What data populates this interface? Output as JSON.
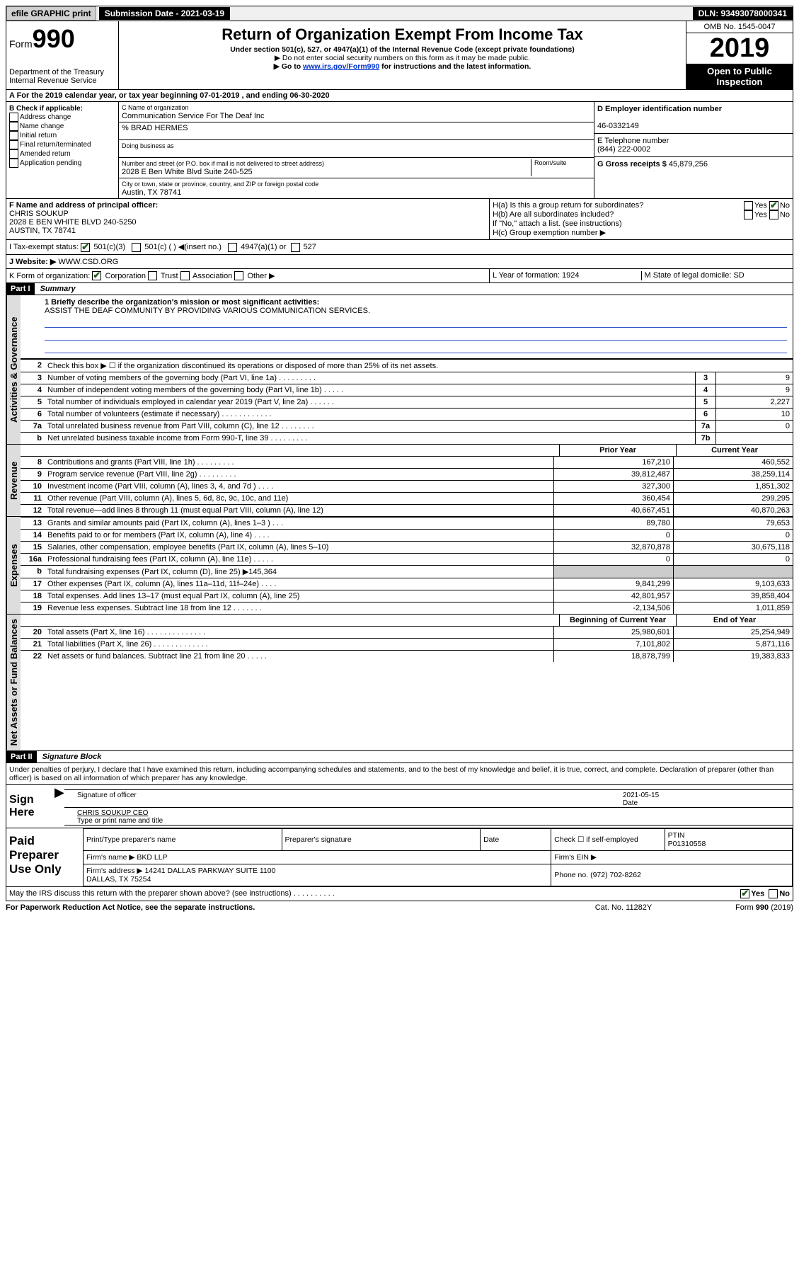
{
  "top": {
    "efile": "efile GRAPHIC print",
    "sub_date": "Submission Date - 2021-03-19",
    "dln": "DLN: 93493078000341"
  },
  "header": {
    "form": "Form",
    "form_no": "990",
    "dept": "Department of the Treasury\nInternal Revenue Service",
    "title": "Return of Organization Exempt From Income Tax",
    "subtitle": "Under section 501(c), 527, or 4947(a)(1) of the Internal Revenue Code (except private foundations)",
    "note1": "▶ Do not enter social security numbers on this form as it may be made public.",
    "note2_pre": "▶ Go to ",
    "note2_link": "www.irs.gov/Form990",
    "note2_post": " for instructions and the latest information.",
    "omb": "OMB No. 1545-0047",
    "year": "2019",
    "inspection": "Open to Public Inspection"
  },
  "row_a": "A For the 2019 calendar year, or tax year beginning 07-01-2019   , and ending 06-30-2020",
  "col_b": {
    "title": "B Check if applicable:",
    "opts": [
      "Address change",
      "Name change",
      "Initial return",
      "Final return/terminated",
      "Amended return",
      "Application pending"
    ]
  },
  "col_c": {
    "c_label": "C Name of organization",
    "c_name": "Communication Service For The Deaf Inc",
    "care": "% BRAD HERMES",
    "dba_label": "Doing business as",
    "addr_label": "Number and street (or P.O. box if mail is not delivered to street address)",
    "room": "Room/suite",
    "addr": "2028 E Ben White Blvd Suite 240-525",
    "city_label": "City or town, state or province, country, and ZIP or foreign postal code",
    "city": "Austin, TX  78741"
  },
  "col_de": {
    "d_label": "D Employer identification number",
    "d_val": "46-0332149",
    "e_label": "E Telephone number",
    "e_val": "(844) 222-0002",
    "g_label": "G Gross receipts $",
    "g_val": "45,879,256"
  },
  "row_f": {
    "f_label": "F  Name and address of principal officer:",
    "f_name": "CHRIS SOUKUP",
    "f_addr1": "2028 E BEN WHITE BLVD 240-5250",
    "f_addr2": "AUSTIN, TX  78741"
  },
  "row_h": {
    "ha": "H(a)  Is this a group return for subordinates?",
    "hb": "H(b)  Are all subordinates included?",
    "hb_note": "If \"No,\" attach a list. (see instructions)",
    "hc": "H(c)  Group exemption number ▶"
  },
  "row_i": {
    "label": "I   Tax-exempt status:",
    "o1": "501(c)(3)",
    "o2": "501(c) (  ) ◀(insert no.)",
    "o3": "4947(a)(1) or",
    "o4": "527"
  },
  "row_j": {
    "label": "J   Website: ▶",
    "val": "WWW.CSD.ORG"
  },
  "row_k": {
    "label": "K Form of organization:",
    "o1": "Corporation",
    "o2": "Trust",
    "o3": "Association",
    "o4": "Other ▶"
  },
  "row_lm": {
    "l": "L Year of formation: 1924",
    "m": "M State of legal domicile: SD"
  },
  "part1": {
    "header": "Part I",
    "title": "Summary",
    "q1": "1  Briefly describe the organization's mission or most significant activities:",
    "mission": "ASSIST THE DEAF COMMUNITY BY PROVIDING VARIOUS COMMUNICATION SERVICES.",
    "q2": "Check this box ▶ ☐  if the organization discontinued its operations or disposed of more than 25% of its net assets."
  },
  "vtabs": {
    "gov": "Activities & Governance",
    "rev": "Revenue",
    "exp": "Expenses",
    "net": "Net Assets or Fund Balances"
  },
  "gov_rows": [
    {
      "n": "3",
      "d": "Number of voting members of the governing body (Part VI, line 1a)  .   .   .   .   .   .   .   .   .",
      "b": "3",
      "v": "9"
    },
    {
      "n": "4",
      "d": "Number of independent voting members of the governing body (Part VI, line 1b)  .   .   .   .   .",
      "b": "4",
      "v": "9"
    },
    {
      "n": "5",
      "d": "Total number of individuals employed in calendar year 2019 (Part V, line 2a)  .   .   .   .   .   .",
      "b": "5",
      "v": "2,227"
    },
    {
      "n": "6",
      "d": "Total number of volunteers (estimate if necessary)  .   .   .   .   .   .   .   .   .   .   .   .",
      "b": "6",
      "v": "10"
    },
    {
      "n": "7a",
      "d": "Total unrelated business revenue from Part VIII, column (C), line 12  .   .   .   .   .   .   .   .",
      "b": "7a",
      "v": "0"
    },
    {
      "n": "b",
      "d": "Net unrelated business taxable income from Form 990-T, line 39  .   .   .   .   .   .   .   .   .",
      "b": "7b",
      "v": ""
    }
  ],
  "year_cols": {
    "py": "Prior Year",
    "cy": "Current Year"
  },
  "rev_rows": [
    {
      "n": "8",
      "d": "Contributions and grants (Part VIII, line 1h)  .   .   .   .   .   .   .   .   .",
      "py": "167,210",
      "cy": "460,552"
    },
    {
      "n": "9",
      "d": "Program service revenue (Part VIII, line 2g)  .   .   .   .   .   .   .   .   .",
      "py": "39,812,487",
      "cy": "38,259,114"
    },
    {
      "n": "10",
      "d": "Investment income (Part VIII, column (A), lines 3, 4, and 7d )  .   .   .   .",
      "py": "327,300",
      "cy": "1,851,302"
    },
    {
      "n": "11",
      "d": "Other revenue (Part VIII, column (A), lines 5, 6d, 8c, 9c, 10c, and 11e)",
      "py": "360,454",
      "cy": "299,295"
    },
    {
      "n": "12",
      "d": "Total revenue—add lines 8 through 11 (must equal Part VIII, column (A), line 12)",
      "py": "40,667,451",
      "cy": "40,870,263"
    }
  ],
  "exp_rows": [
    {
      "n": "13",
      "d": "Grants and similar amounts paid (Part IX, column (A), lines 1–3 )  .   .   .",
      "py": "89,780",
      "cy": "79,653"
    },
    {
      "n": "14",
      "d": "Benefits paid to or for members (Part IX, column (A), line 4)  .   .   .   .",
      "py": "0",
      "cy": "0"
    },
    {
      "n": "15",
      "d": "Salaries, other compensation, employee benefits (Part IX, column (A), lines 5–10)",
      "py": "32,870,878",
      "cy": "30,675,118"
    },
    {
      "n": "16a",
      "d": "Professional fundraising fees (Part IX, column (A), line 11e)  .   .   .   .   .",
      "py": "0",
      "cy": "0"
    },
    {
      "n": "b",
      "d": "Total fundraising expenses (Part IX, column (D), line 25) ▶145,364",
      "py": "",
      "cy": "",
      "gray": true
    },
    {
      "n": "17",
      "d": "Other expenses (Part IX, column (A), lines 11a–11d, 11f–24e)  .   .   .   .",
      "py": "9,841,299",
      "cy": "9,103,633"
    },
    {
      "n": "18",
      "d": "Total expenses. Add lines 13–17 (must equal Part IX, column (A), line 25)",
      "py": "42,801,957",
      "cy": "39,858,404"
    },
    {
      "n": "19",
      "d": "Revenue less expenses. Subtract line 18 from line 12  .   .   .   .   .   .   .",
      "py": "-2,134,506",
      "cy": "1,011,859"
    }
  ],
  "net_cols": {
    "py": "Beginning of Current Year",
    "cy": "End of Year"
  },
  "net_rows": [
    {
      "n": "20",
      "d": "Total assets (Part X, line 16)  .   .   .   .   .   .   .   .   .   .   .   .   .   .",
      "py": "25,980,601",
      "cy": "25,254,949"
    },
    {
      "n": "21",
      "d": "Total liabilities (Part X, line 26)  .   .   .   .   .   .   .   .   .   .   .   .   .",
      "py": "7,101,802",
      "cy": "5,871,116"
    },
    {
      "n": "22",
      "d": "Net assets or fund balances. Subtract line 21 from line 20  .   .   .   .   .",
      "py": "18,878,799",
      "cy": "19,383,833"
    }
  ],
  "part2": {
    "header": "Part II",
    "title": "Signature Block",
    "decl": "Under penalties of perjury, I declare that I have examined this return, including accompanying schedules and statements, and to the best of my knowledge and belief, it is true, correct, and complete. Declaration of preparer (other than officer) is based on all information of which preparer has any knowledge."
  },
  "sign": {
    "label": "Sign Here",
    "date": "2021-05-15",
    "sig_label": "Signature of officer",
    "date_label": "Date",
    "name": "CHRIS SOUKUP  CEO",
    "name_label": "Type or print name and title"
  },
  "paid": {
    "label": "Paid Preparer Use Only",
    "h1": "Print/Type preparer's name",
    "h2": "Preparer's signature",
    "h3": "Date",
    "h4_a": "Check ☐ if self-employed",
    "h4_b": "PTIN",
    "ptin": "P01310558",
    "firm_name_l": "Firm's name   ▶",
    "firm_name": "BKD LLP",
    "firm_ein_l": "Firm's EIN ▶",
    "firm_addr_l": "Firm's address ▶",
    "firm_addr": "14241 DALLAS PARKWAY SUITE 1100\nDALLAS, TX  75254",
    "phone_l": "Phone no.",
    "phone": "(972) 702-8262"
  },
  "discuss": "May the IRS discuss this return with the preparer shown above? (see instructions)  .   .   .   .   .   .   .   .   .   .",
  "footer": {
    "l": "For Paperwork Reduction Act Notice, see the separate instructions.",
    "c": "Cat. No. 11282Y",
    "r": "Form 990 (2019)"
  }
}
